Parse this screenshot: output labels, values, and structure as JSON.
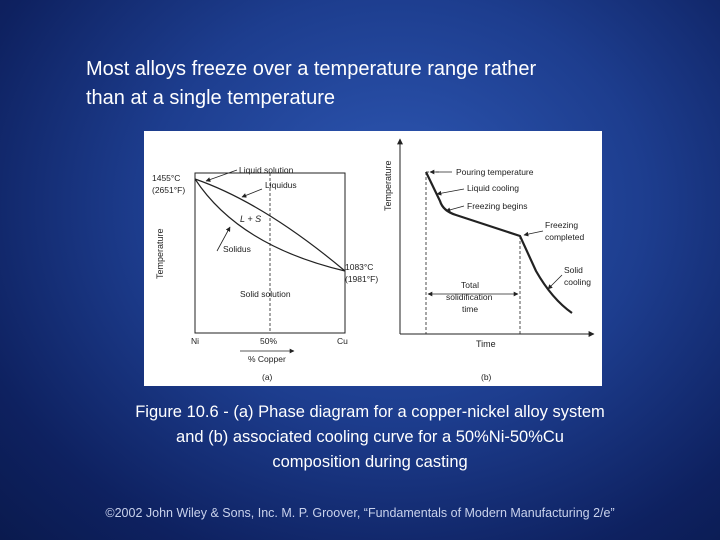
{
  "slide": {
    "heading_line1": "Most alloys freeze over a temperature range rather",
    "heading_line2": "than at a single temperature",
    "caption_line1": "Figure 10.6 ‑ (a) Phase diagram for a copper‑nickel alloy system",
    "caption_line2": "and (b) associated cooling curve for a 50%Ni‑50%Cu",
    "caption_line3": "composition during casting",
    "credit": "©2002 John Wiley & Sons, Inc. M. P. Groover, “Fundamentals of Modern Manufacturing 2/e”"
  },
  "diagram_a": {
    "left_temp_c": "1455°C",
    "left_temp_f": "(2651°F)",
    "right_temp_c": "1083°C",
    "right_temp_f": "(1981°F)",
    "y_axis_label": "Temperature",
    "label_liquid_solution": "Liquid solution",
    "label_liquidus": "Liquidus",
    "label_two_phase": "L + S",
    "label_solidus": "Solidus",
    "label_solid_solution": "Solid solution",
    "tick_ni": "Ni",
    "tick_50": "50%",
    "tick_cu": "Cu",
    "x_axis_label": "% Copper",
    "panel_tag": "(a)"
  },
  "diagram_b": {
    "y_axis_label": "Temperature",
    "label_pouring": "Pouring temperature",
    "label_liquid_cooling": "Liquid cooling",
    "label_freezing_begins": "Freezing begins",
    "label_freezing_completed_1": "Freezing",
    "label_freezing_completed_2": "completed",
    "label_solid_cooling_1": "Solid",
    "label_solid_cooling_2": "cooling",
    "label_total_1": "Total",
    "label_total_2": "solidification",
    "label_total_3": "time",
    "x_axis_label": "Time",
    "panel_tag": "(b)"
  }
}
